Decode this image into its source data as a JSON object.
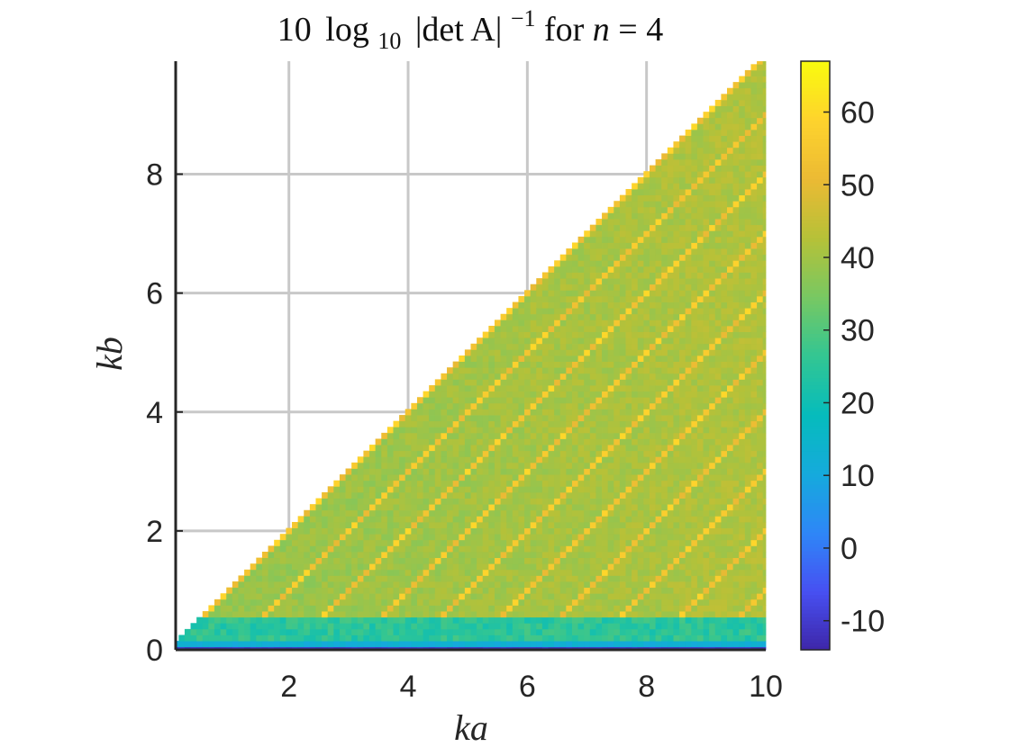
{
  "chart_data": {
    "type": "heatmap",
    "title": {
      "prefix": "10",
      "log": "log",
      "log_sub": "10",
      "det_text": "|det A|",
      "exponent": "−1",
      "for_text": " for ",
      "n_var": "n",
      "n_eq": " = 4"
    },
    "xlabel": "ka",
    "ylabel": "kb",
    "xlim": [
      0.1,
      10
    ],
    "ylim": [
      0,
      9.9
    ],
    "xticks": [
      2,
      4,
      6,
      8,
      10
    ],
    "xtick_labels": [
      "2",
      "4",
      "6",
      "8",
      "10"
    ],
    "yticks": [
      0,
      2,
      4,
      6,
      8
    ],
    "ytick_labels": [
      "0",
      "2",
      "4",
      "6",
      "8"
    ],
    "grid": true,
    "colormap": "parula",
    "clim": [
      -14,
      67
    ],
    "colorbar_ticks": [
      -10,
      0,
      10,
      20,
      30,
      40,
      50,
      60
    ],
    "colorbar_tick_labels": [
      "-10",
      "0",
      "10",
      "20",
      "30",
      "40",
      "50",
      "60"
    ],
    "domain": "kb < ka",
    "grid_step": 0.1,
    "value_summary": {
      "kb_near_0": -12,
      "kb_0_1": 10,
      "low_kb_band": 25,
      "interior_typical": 38,
      "interior_high_ka": 42,
      "diagonal_ridges_peak": 60
    }
  }
}
